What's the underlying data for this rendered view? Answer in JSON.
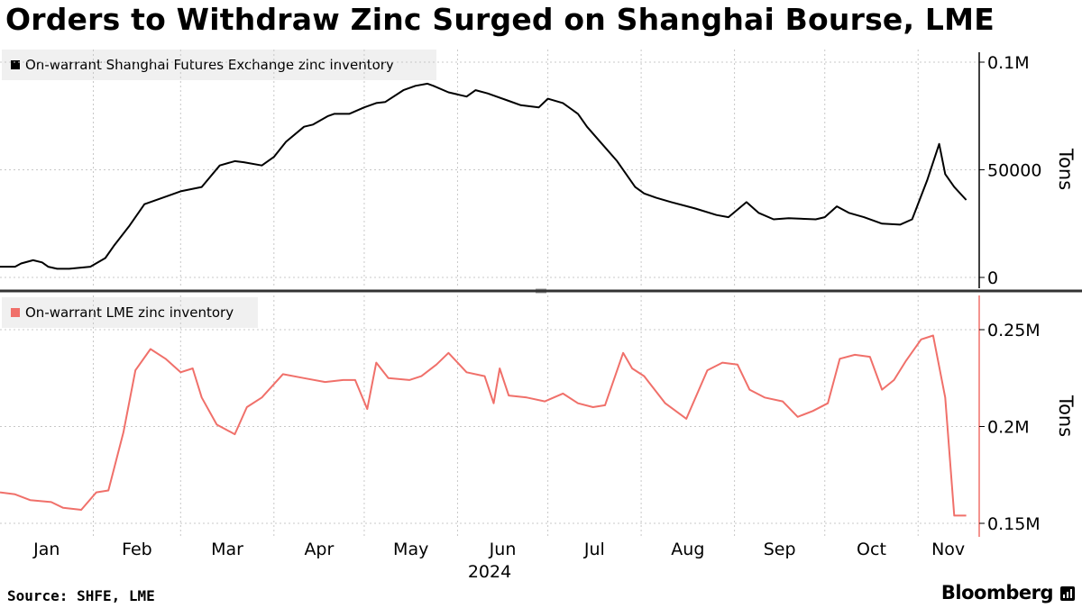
{
  "title": "Orders to Withdraw Zinc Surged on Shanghai Bourse, LME",
  "source": "Source: SHFE, LME",
  "brand": "Bloomberg",
  "chart_data": [
    {
      "type": "line",
      "legend": "On-warrant Shanghai Futures Exchange zinc inventory",
      "color": "#000000",
      "ylabel": "Tons",
      "ylim": [
        0,
        100000
      ],
      "yticks": [
        {
          "v": 0,
          "label": "0"
        },
        {
          "v": 50000,
          "label": "50000"
        },
        {
          "v": 100000,
          "label": "0.1M"
        }
      ],
      "grid": true,
      "legend_position": "top-left",
      "series": [
        {
          "x": [
            "2024-01-01",
            "2024-01-06",
            "2024-01-08",
            "2024-01-12",
            "2024-01-15",
            "2024-01-17",
            "2024-01-20",
            "2024-01-24",
            "2024-01-31",
            "2024-02-05",
            "2024-02-08",
            "2024-02-13",
            "2024-02-18",
            "2024-02-24",
            "2024-02-26",
            "2024-03-01",
            "2024-03-08",
            "2024-03-14",
            "2024-03-19",
            "2024-03-22",
            "2024-03-28",
            "2024-04-01",
            "2024-04-05",
            "2024-04-11",
            "2024-04-14",
            "2024-04-19",
            "2024-04-21",
            "2024-04-26",
            "2024-05-01",
            "2024-05-05",
            "2024-05-08",
            "2024-05-14",
            "2024-05-18",
            "2024-05-22",
            "2024-05-24",
            "2024-05-29",
            "2024-06-04",
            "2024-06-07",
            "2024-06-11",
            "2024-06-18",
            "2024-06-22",
            "2024-06-28",
            "2024-07-01",
            "2024-07-06",
            "2024-07-11",
            "2024-07-14",
            "2024-07-19",
            "2024-07-24",
            "2024-07-30",
            "2024-08-02",
            "2024-08-06",
            "2024-08-11",
            "2024-08-19",
            "2024-08-26",
            "2024-08-30",
            "2024-09-05",
            "2024-09-09",
            "2024-09-14",
            "2024-09-19",
            "2024-09-28",
            "2024-10-01",
            "2024-10-05",
            "2024-10-09",
            "2024-10-14",
            "2024-10-20",
            "2024-10-26",
            "2024-10-30",
            "2024-11-04",
            "2024-11-08",
            "2024-11-10",
            "2024-11-13",
            "2024-11-17"
          ],
          "values": [
            5000,
            5000,
            6500,
            8000,
            7000,
            5000,
            4000,
            4000,
            5000,
            9000,
            15000,
            24000,
            34000,
            37000,
            38000,
            40000,
            42000,
            52000,
            54000,
            53500,
            52000,
            56000,
            63000,
            70000,
            71000,
            75000,
            76000,
            76000,
            79000,
            81000,
            81500,
            87000,
            89000,
            90000,
            89000,
            86000,
            84000,
            87000,
            85500,
            82000,
            80000,
            79000,
            83000,
            81000,
            76000,
            70000,
            62000,
            54000,
            42000,
            39000,
            37000,
            35000,
            32000,
            29000,
            28000,
            35000,
            30000,
            27000,
            27500,
            27000,
            28000,
            33000,
            30000,
            28000,
            25000,
            24500,
            27000,
            45000,
            62000,
            48000,
            42000,
            36000
          ]
        }
      ]
    },
    {
      "type": "line",
      "legend": "On-warrant LME zinc inventory",
      "color": "#f0706a",
      "ylabel": "Tons",
      "ylim": [
        150000,
        250000
      ],
      "yticks": [
        {
          "v": 150000,
          "label": "0.15M"
        },
        {
          "v": 200000,
          "label": "0.2M"
        },
        {
          "v": 250000,
          "label": "0.25M"
        }
      ],
      "grid": true,
      "legend_position": "top-left",
      "series": [
        {
          "x": [
            "2024-01-01",
            "2024-01-06",
            "2024-01-11",
            "2024-01-18",
            "2024-01-22",
            "2024-01-28",
            "2024-02-02",
            "2024-02-06",
            "2024-02-11",
            "2024-02-15",
            "2024-02-20",
            "2024-02-25",
            "2024-03-01",
            "2024-03-05",
            "2024-03-08",
            "2024-03-13",
            "2024-03-19",
            "2024-03-23",
            "2024-03-28",
            "2024-04-04",
            "2024-04-11",
            "2024-04-18",
            "2024-04-24",
            "2024-04-28",
            "2024-05-02",
            "2024-05-05",
            "2024-05-09",
            "2024-05-16",
            "2024-05-20",
            "2024-05-25",
            "2024-05-29",
            "2024-06-04",
            "2024-06-10",
            "2024-06-13",
            "2024-06-15",
            "2024-06-18",
            "2024-06-24",
            "2024-06-30",
            "2024-07-06",
            "2024-07-11",
            "2024-07-16",
            "2024-07-20",
            "2024-07-26",
            "2024-07-29",
            "2024-08-02",
            "2024-08-04",
            "2024-08-09",
            "2024-08-16",
            "2024-08-23",
            "2024-08-28",
            "2024-09-02",
            "2024-09-06",
            "2024-09-11",
            "2024-09-17",
            "2024-09-22",
            "2024-09-27",
            "2024-10-02",
            "2024-10-06",
            "2024-10-11",
            "2024-10-16",
            "2024-10-20",
            "2024-10-24",
            "2024-10-28",
            "2024-11-02",
            "2024-11-06",
            "2024-11-10",
            "2024-11-13",
            "2024-11-17"
          ],
          "values": [
            166000,
            165000,
            162000,
            161000,
            158000,
            157000,
            166000,
            167000,
            197000,
            229000,
            240000,
            235000,
            228000,
            230000,
            215000,
            201000,
            196000,
            210000,
            215000,
            227000,
            225000,
            223000,
            224000,
            224000,
            209000,
            233000,
            225000,
            224000,
            226000,
            232000,
            238000,
            228000,
            226000,
            212000,
            230000,
            216000,
            215000,
            213000,
            217000,
            212000,
            210000,
            211000,
            238000,
            230000,
            226000,
            222000,
            212000,
            204000,
            229000,
            233000,
            232000,
            219000,
            215000,
            213000,
            205000,
            208000,
            212000,
            235000,
            237000,
            236000,
            219000,
            224000,
            234000,
            245000,
            247000,
            215000,
            154000,
            154000
          ]
        }
      ]
    }
  ],
  "x_axis": {
    "start": "2024-01-01",
    "end": "2024-11-21",
    "months": [
      "Jan",
      "Feb",
      "Mar",
      "Apr",
      "May",
      "Jun",
      "Jul",
      "Aug",
      "Sep",
      "Oct",
      "Nov"
    ],
    "year": "2024"
  }
}
